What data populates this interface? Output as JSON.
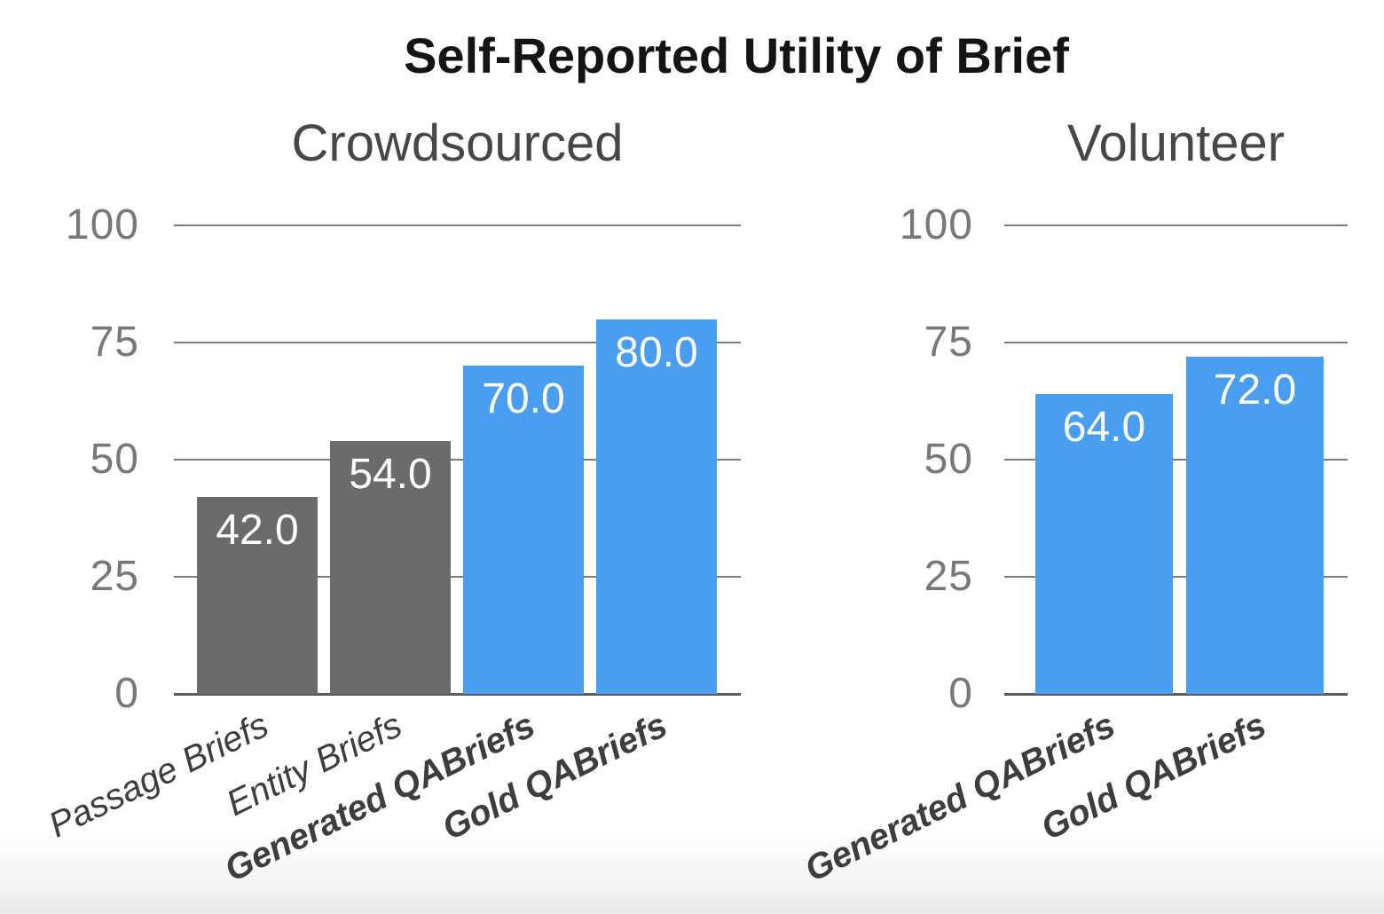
{
  "title": "Self-Reported Utility of Brief",
  "colors": {
    "highlight_bar": "#4a9ef2",
    "baseline_bar": "#6b6b6b",
    "value_label": "#ffffff"
  },
  "chart_data": [
    {
      "type": "bar",
      "title": "Crowdsourced",
      "categories": [
        "Passage Briefs",
        "Entity Briefs",
        "Generated QABriefs",
        "Gold QABriefs"
      ],
      "values": [
        42.0,
        54.0,
        70.0,
        80.0
      ],
      "value_labels": [
        "42.0",
        "54.0",
        "70.0",
        "80.0"
      ],
      "highlighted": [
        false,
        false,
        true,
        true
      ],
      "ylabel": "",
      "xlabel": "",
      "ylim": [
        0,
        100
      ],
      "yticks": [
        0,
        25,
        50,
        75,
        100
      ],
      "grid": true,
      "legend": "none"
    },
    {
      "type": "bar",
      "title": "Volunteer",
      "categories": [
        "Generated QABriefs",
        "Gold QABriefs"
      ],
      "values": [
        64.0,
        72.0
      ],
      "value_labels": [
        "64.0",
        "72.0"
      ],
      "highlighted": [
        true,
        true
      ],
      "ylabel": "",
      "xlabel": "",
      "ylim": [
        0,
        100
      ],
      "yticks": [
        0,
        25,
        50,
        75,
        100
      ],
      "grid": true,
      "legend": "none"
    }
  ]
}
